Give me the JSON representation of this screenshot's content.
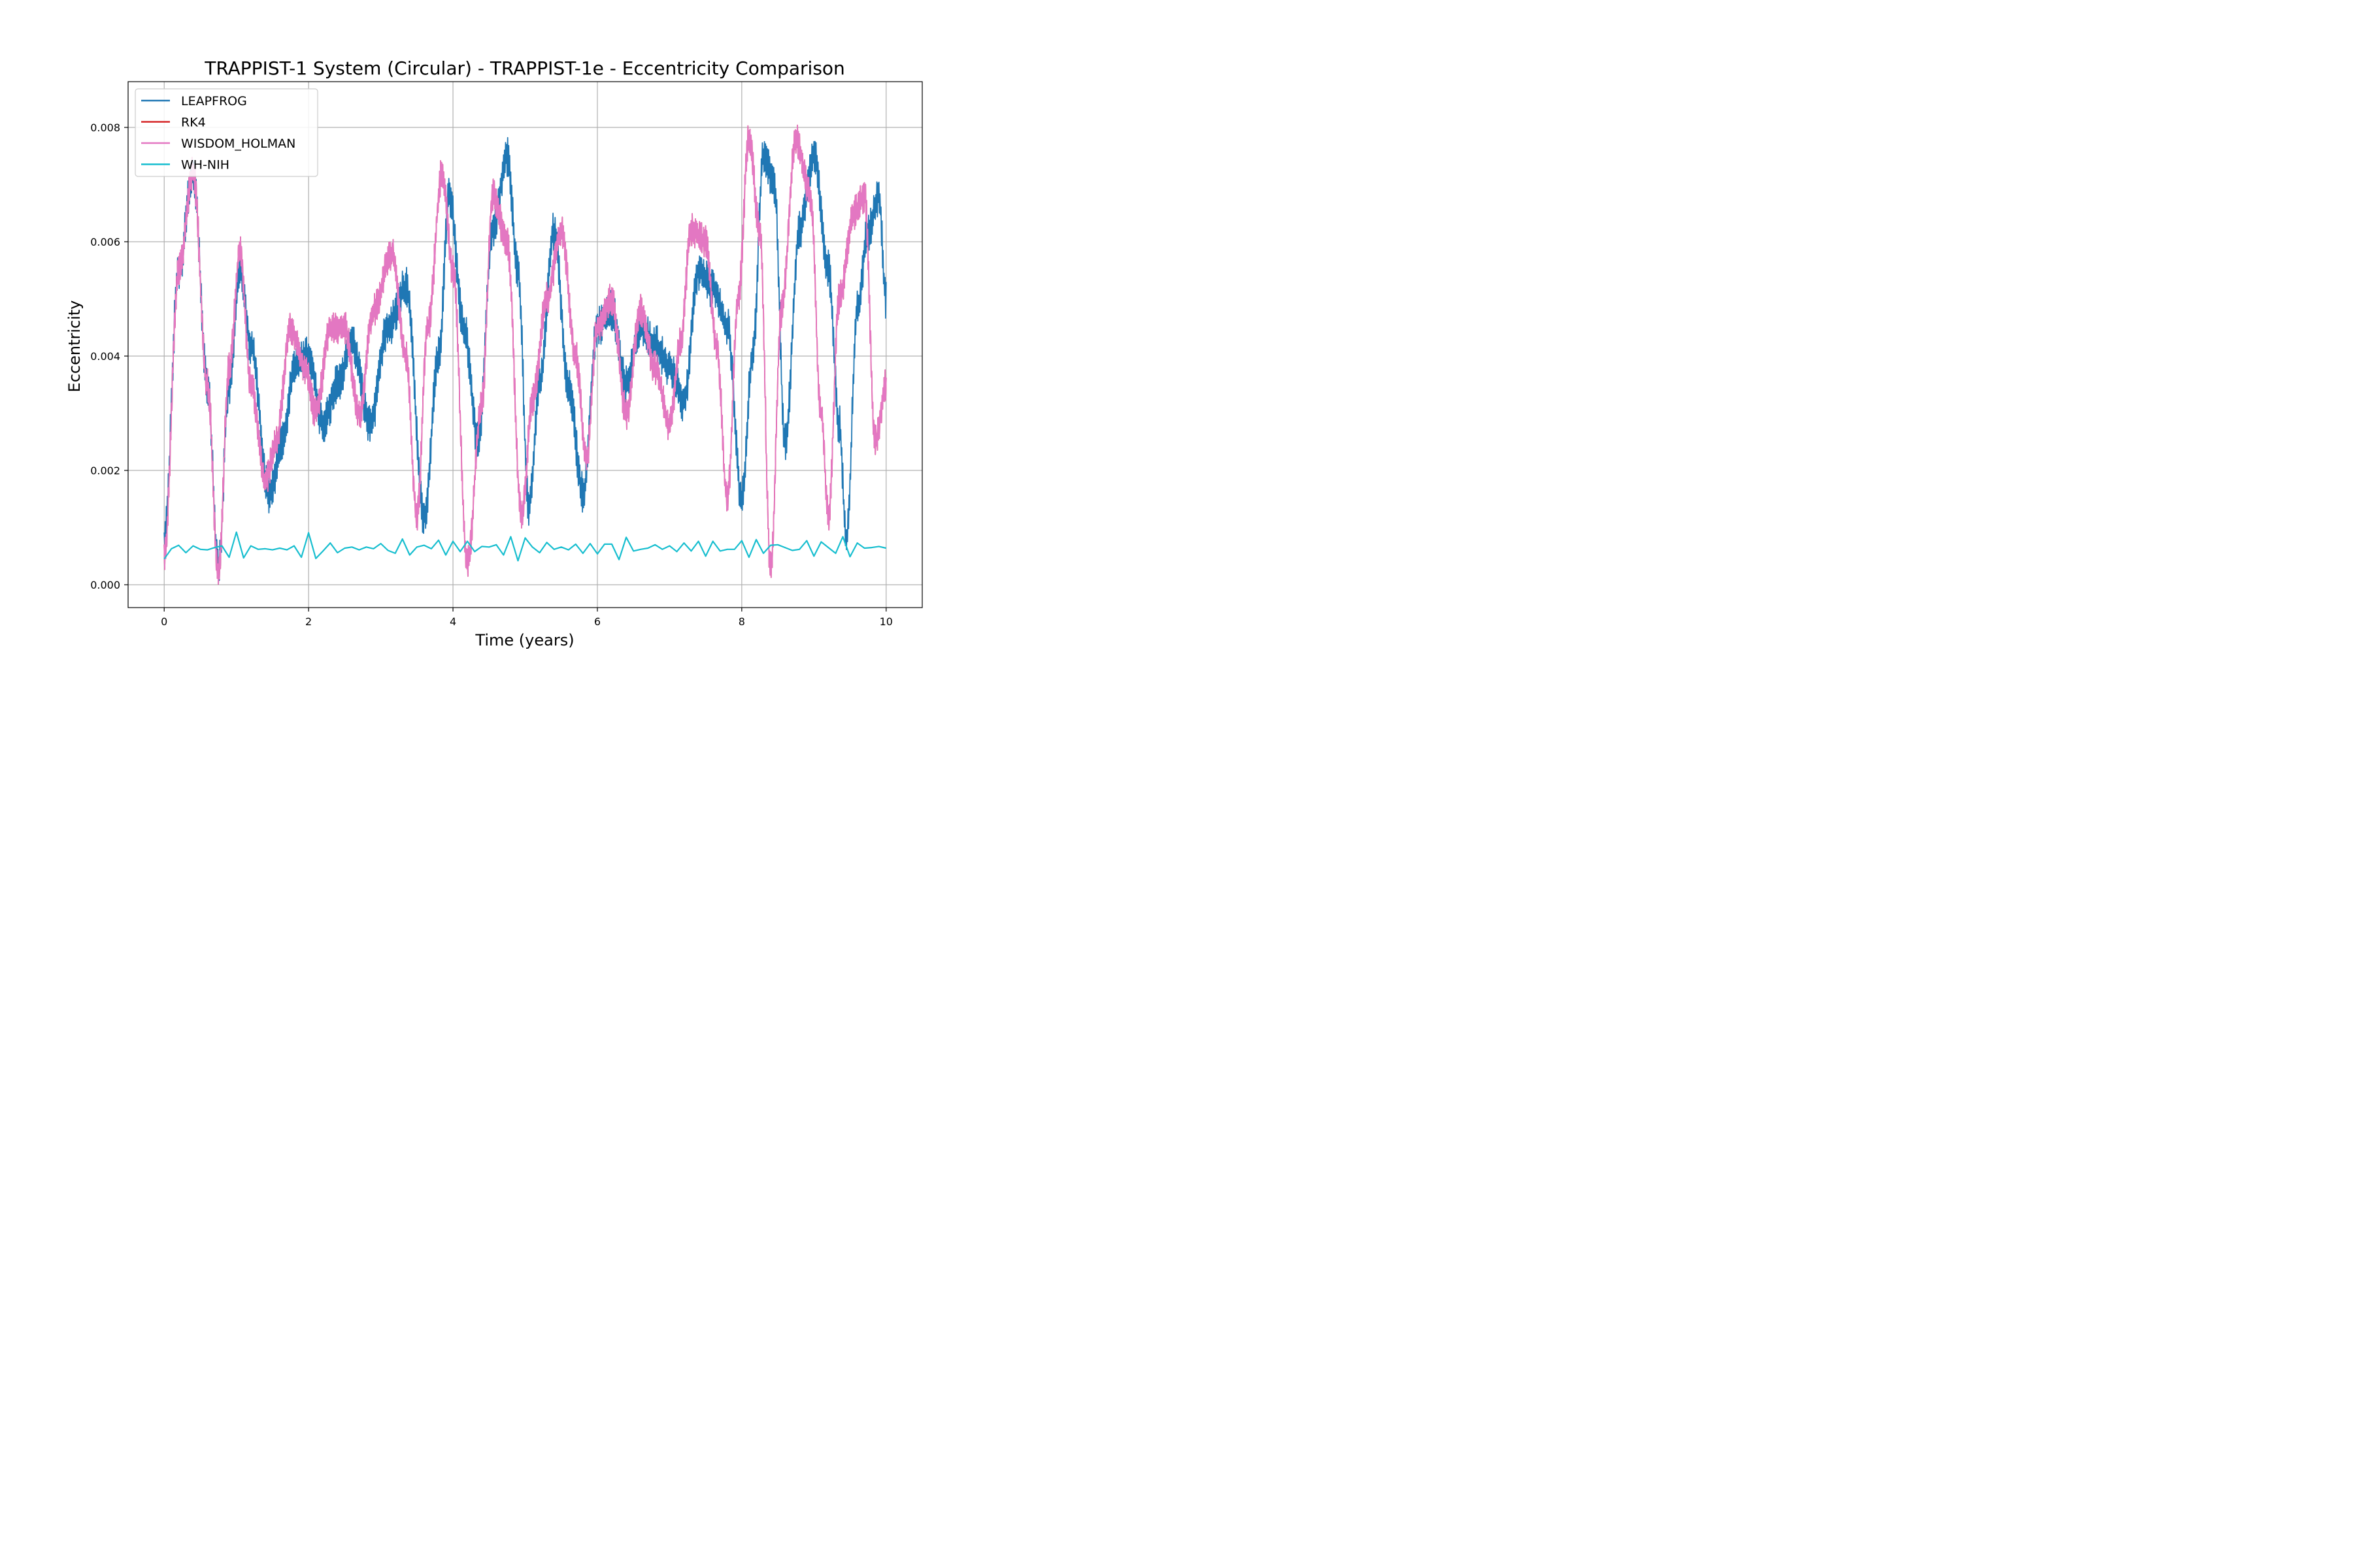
{
  "chart_data": {
    "type": "line",
    "title": "TRAPPIST-1 System (Circular) - TRAPPIST-1e - Eccentricity Comparison",
    "xlabel": "Time (years)",
    "ylabel": "Eccentricity",
    "xlim": [
      -0.5,
      10.5
    ],
    "ylim": [
      -0.0004,
      0.0088
    ],
    "xticks": [
      0,
      2,
      4,
      6,
      8,
      10
    ],
    "xtick_labels": [
      "0",
      "2",
      "4",
      "6",
      "8",
      "10"
    ],
    "yticks": [
      0.0,
      0.002,
      0.004,
      0.006,
      0.008
    ],
    "ytick_labels": [
      "0.000",
      "0.002",
      "0.004",
      "0.006",
      "0.008"
    ],
    "grid": true,
    "legend_position": "top-left",
    "series": [
      {
        "name": "LEAPFROG",
        "color": "#1f77b4",
        "noise": 0.0006,
        "x": [
          0,
          0.2,
          0.4,
          0.6,
          0.75,
          0.9,
          1.05,
          1.2,
          1.45,
          1.65,
          1.8,
          2.0,
          2.2,
          2.4,
          2.6,
          2.85,
          3.1,
          3.35,
          3.6,
          3.8,
          3.95,
          4.15,
          4.35,
          4.55,
          4.75,
          4.9,
          5.05,
          5.2,
          5.4,
          5.6,
          5.8,
          6.0,
          6.2,
          6.4,
          6.6,
          6.8,
          7.0,
          7.2,
          7.4,
          7.6,
          7.8,
          8.0,
          8.15,
          8.3,
          8.45,
          8.6,
          8.8,
          9.0,
          9.2,
          9.35,
          9.45,
          9.6,
          9.75,
          9.9,
          10.0
        ],
        "y": [
          0.0008,
          0.0055,
          0.0072,
          0.0035,
          0.0003,
          0.0035,
          0.0055,
          0.0042,
          0.0016,
          0.0025,
          0.0038,
          0.004,
          0.0028,
          0.0035,
          0.0042,
          0.0028,
          0.0045,
          0.0052,
          0.0012,
          0.004,
          0.0068,
          0.0045,
          0.0025,
          0.0062,
          0.0075,
          0.0055,
          0.0014,
          0.0035,
          0.0062,
          0.0035,
          0.0016,
          0.0045,
          0.0048,
          0.0035,
          0.0045,
          0.0042,
          0.0038,
          0.0032,
          0.0055,
          0.0052,
          0.0045,
          0.0015,
          0.004,
          0.0075,
          0.007,
          0.0025,
          0.0062,
          0.0075,
          0.0055,
          0.0028,
          0.0008,
          0.0048,
          0.0062,
          0.0068,
          0.005
        ]
      },
      {
        "name": "RK4",
        "color": "#d62728",
        "noise": 0.0005,
        "x": [
          0,
          0.2,
          0.4,
          0.6,
          0.75,
          0.9,
          1.05,
          1.2,
          1.4,
          1.55,
          1.75,
          1.95,
          2.1,
          2.3,
          2.5,
          2.7,
          2.9,
          3.15,
          3.35,
          3.5,
          3.65,
          3.85,
          4.0,
          4.2,
          4.4,
          4.55,
          4.75,
          4.95,
          5.1,
          5.3,
          5.5,
          5.7,
          5.85,
          6.0,
          6.2,
          6.4,
          6.6,
          6.8,
          7.0,
          7.15,
          7.3,
          7.5,
          7.65,
          7.8,
          7.95,
          8.1,
          8.25,
          8.4,
          8.55,
          8.75,
          8.95,
          9.1,
          9.2,
          9.35,
          9.55,
          9.7,
          9.85,
          10.0
        ],
        "y": [
          0.0005,
          0.0055,
          0.0072,
          0.0035,
          0.0002,
          0.0038,
          0.0058,
          0.0035,
          0.0018,
          0.0025,
          0.0045,
          0.0038,
          0.003,
          0.0045,
          0.0045,
          0.003,
          0.0048,
          0.0058,
          0.004,
          0.0012,
          0.0045,
          0.0072,
          0.0055,
          0.0004,
          0.0032,
          0.0068,
          0.006,
          0.0012,
          0.0032,
          0.005,
          0.0062,
          0.004,
          0.0022,
          0.0045,
          0.005,
          0.003,
          0.0048,
          0.0038,
          0.0028,
          0.0042,
          0.0062,
          0.006,
          0.0042,
          0.0015,
          0.005,
          0.0078,
          0.0062,
          0.0003,
          0.0048,
          0.0078,
          0.0068,
          0.003,
          0.0012,
          0.005,
          0.0065,
          0.0068,
          0.0025,
          0.0035
        ]
      },
      {
        "name": "WISDOM_HOLMAN",
        "color": "#e377c2",
        "noise": 0.0005,
        "x": [
          0,
          0.2,
          0.4,
          0.6,
          0.75,
          0.9,
          1.05,
          1.2,
          1.4,
          1.55,
          1.75,
          1.95,
          2.1,
          2.3,
          2.5,
          2.7,
          2.9,
          3.15,
          3.35,
          3.5,
          3.65,
          3.85,
          4.0,
          4.2,
          4.4,
          4.55,
          4.75,
          4.95,
          5.1,
          5.3,
          5.5,
          5.7,
          5.85,
          6.0,
          6.2,
          6.4,
          6.6,
          6.8,
          7.0,
          7.15,
          7.3,
          7.5,
          7.65,
          7.8,
          7.95,
          8.1,
          8.25,
          8.4,
          8.55,
          8.75,
          8.95,
          9.1,
          9.2,
          9.35,
          9.55,
          9.7,
          9.85,
          10.0
        ],
        "y": [
          0.0005,
          0.0055,
          0.0072,
          0.0035,
          0.0002,
          0.0038,
          0.0058,
          0.0035,
          0.0018,
          0.0025,
          0.0045,
          0.0038,
          0.003,
          0.0045,
          0.0045,
          0.003,
          0.0048,
          0.0058,
          0.004,
          0.0012,
          0.0045,
          0.0072,
          0.0055,
          0.0004,
          0.0032,
          0.0068,
          0.006,
          0.0012,
          0.0032,
          0.005,
          0.0062,
          0.004,
          0.0022,
          0.0045,
          0.005,
          0.003,
          0.0048,
          0.0038,
          0.0028,
          0.0042,
          0.0062,
          0.006,
          0.0042,
          0.0015,
          0.005,
          0.0078,
          0.0062,
          0.0003,
          0.0048,
          0.0078,
          0.0068,
          0.003,
          0.0012,
          0.005,
          0.0065,
          0.0068,
          0.0025,
          0.0035
        ]
      },
      {
        "name": "WH-NIH",
        "color": "#17becf",
        "noise": 0,
        "x": [
          0.0,
          0.1,
          0.2,
          0.3,
          0.4,
          0.5,
          0.6,
          0.7,
          0.8,
          0.9,
          1.0,
          1.1,
          1.2,
          1.3,
          1.4,
          1.5,
          1.6,
          1.7,
          1.8,
          1.9,
          2.0,
          2.1,
          2.2,
          2.3,
          2.4,
          2.5,
          2.6,
          2.7,
          2.8,
          2.9,
          3.0,
          3.1,
          3.2,
          3.3,
          3.4,
          3.5,
          3.6,
          3.7,
          3.8,
          3.9,
          4.0,
          4.1,
          4.2,
          4.3,
          4.4,
          4.5,
          4.6,
          4.7,
          4.8,
          4.9,
          5.0,
          5.1,
          5.2,
          5.3,
          5.4,
          5.5,
          5.6,
          5.7,
          5.8,
          5.9,
          6.0,
          6.1,
          6.2,
          6.3,
          6.4,
          6.5,
          6.6,
          6.7,
          6.8,
          6.9,
          7.0,
          7.1,
          7.2,
          7.3,
          7.4,
          7.5,
          7.6,
          7.7,
          7.8,
          7.9,
          8.0,
          8.1,
          8.2,
          8.3,
          8.4,
          8.5,
          8.6,
          8.7,
          8.8,
          8.9,
          9.0,
          9.1,
          9.2,
          9.3,
          9.4,
          9.5,
          9.6,
          9.7,
          9.8,
          9.9,
          10.0
        ],
        "y": [
          0.00045,
          0.00063,
          0.00069,
          0.00056,
          0.00068,
          0.00062,
          0.00061,
          0.00065,
          0.00068,
          0.00048,
          0.00092,
          0.00047,
          0.00068,
          0.00062,
          0.00063,
          0.00061,
          0.00064,
          0.00061,
          0.00068,
          0.00048,
          0.00091,
          0.00046,
          0.00059,
          0.00073,
          0.00056,
          0.00064,
          0.00066,
          0.00061,
          0.00066,
          0.00063,
          0.00072,
          0.0006,
          0.00055,
          0.0008,
          0.00052,
          0.00066,
          0.00069,
          0.00063,
          0.00078,
          0.00052,
          0.00076,
          0.00058,
          0.00076,
          0.00058,
          0.00067,
          0.00066,
          0.0007,
          0.00052,
          0.00084,
          0.00042,
          0.00082,
          0.00066,
          0.00056,
          0.00074,
          0.00062,
          0.00066,
          0.00061,
          0.00071,
          0.00055,
          0.00072,
          0.00054,
          0.00071,
          0.00071,
          0.00044,
          0.00083,
          0.00059,
          0.00062,
          0.00064,
          0.0007,
          0.00062,
          0.00068,
          0.00058,
          0.00073,
          0.00059,
          0.00076,
          0.0005,
          0.00076,
          0.00059,
          0.00062,
          0.00062,
          0.00077,
          0.00048,
          0.00079,
          0.00055,
          0.00069,
          0.0007,
          0.00065,
          0.0006,
          0.00062,
          0.00077,
          0.0005,
          0.00075,
          0.00065,
          0.00055,
          0.00084,
          0.00049,
          0.00073,
          0.00064,
          0.00065,
          0.00067,
          0.00064
        ]
      }
    ]
  }
}
